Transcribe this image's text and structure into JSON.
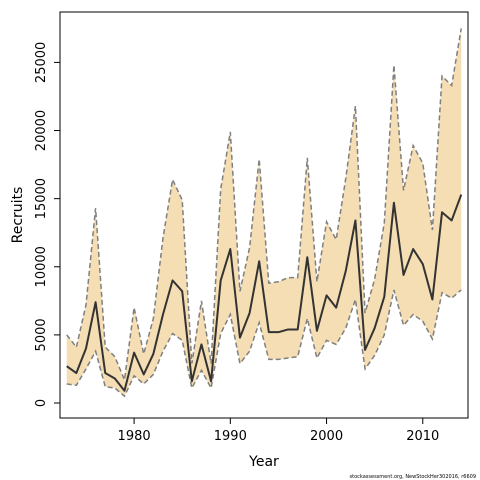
{
  "chart_data": {
    "type": "line",
    "title": "",
    "xlabel": "Year",
    "ylabel": "Recruits",
    "xlim": [
      1972.3,
      2014.7
    ],
    "ylim": [
      -1100,
      28700
    ],
    "x_ticks": [
      1980,
      1990,
      2000,
      2010
    ],
    "y_ticks": [
      0,
      5000,
      10000,
      15000,
      20000,
      25000
    ],
    "grid": false,
    "legend": "none",
    "colors": {
      "band": "#f5deb3",
      "band_edge": "#7f7f7f",
      "line": "#333333",
      "frame": "#000000"
    },
    "x": [
      1973,
      1974,
      1975,
      1976,
      1977,
      1978,
      1979,
      1980,
      1981,
      1982,
      1983,
      1984,
      1985,
      1986,
      1987,
      1988,
      1989,
      1990,
      1991,
      1992,
      1993,
      1994,
      1995,
      1996,
      1997,
      1998,
      1999,
      2000,
      2001,
      2002,
      2003,
      2004,
      2005,
      2006,
      2007,
      2008,
      2009,
      2010,
      2011,
      2012,
      2013,
      2014
    ],
    "series": [
      {
        "type": "line",
        "values": [
          2700,
          2200,
          4000,
          7400,
          2200,
          1800,
          900,
          3700,
          2100,
          3600,
          6500,
          9000,
          8200,
          1600,
          4300,
          1600,
          9000,
          11300,
          4800,
          6600,
          10400,
          5200,
          5200,
          5400,
          5400,
          10700,
          5300,
          7900,
          7000,
          9700,
          13400,
          3900,
          5500,
          7800,
          14700,
          9400,
          11300,
          10200,
          7600,
          14000,
          13400,
          15300
        ]
      },
      {
        "type": "band",
        "lower": [
          1400,
          1300,
          2500,
          3800,
          1200,
          1100,
          500,
          2000,
          1400,
          2100,
          3800,
          5100,
          4600,
          1100,
          2400,
          1100,
          5100,
          6500,
          2900,
          3800,
          5900,
          3200,
          3200,
          3300,
          3400,
          6200,
          3300,
          4600,
          4300,
          5500,
          7600,
          2500,
          3500,
          5000,
          8300,
          5700,
          6500,
          6000,
          4700,
          8100,
          7700,
          8300
        ],
        "upper": [
          5000,
          4100,
          7200,
          14300,
          4100,
          3400,
          1700,
          7000,
          3600,
          6200,
          12100,
          16400,
          14900,
          2900,
          7500,
          2900,
          15700,
          19900,
          8200,
          11400,
          17900,
          8800,
          8900,
          9200,
          9200,
          18000,
          8900,
          13300,
          12000,
          16500,
          21800,
          6600,
          9100,
          13200,
          24800,
          15600,
          18900,
          17600,
          12700,
          24000,
          23300,
          27500
        ]
      }
    ]
  },
  "footer": {
    "credit": "stockassessment.org, NewStockHer302016, r6609"
  }
}
